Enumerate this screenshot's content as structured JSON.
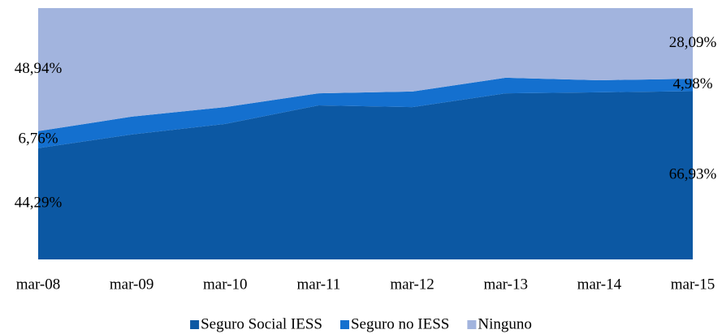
{
  "chart_data": {
    "type": "stacked_area",
    "categories": [
      "mar-08",
      "mar-09",
      "mar-10",
      "mar-11",
      "mar-12",
      "mar-13",
      "mar-14",
      "mar-15"
    ],
    "series": [
      {
        "name": "Seguro Social IESS",
        "color": "#0c58a3",
        "values": [
          44.29,
          49.7,
          53.9,
          61.3,
          60.6,
          66.1,
          66.5,
          66.93
        ],
        "value_labels": [
          "44,29%",
          null,
          null,
          null,
          null,
          null,
          null,
          "66,93%"
        ]
      },
      {
        "name": "Seguro no IESS",
        "color": "#1470cf",
        "values": [
          6.76,
          7.1,
          6.7,
          4.8,
          6.2,
          6.2,
          4.8,
          4.98
        ],
        "value_labels": [
          "6,76%",
          null,
          null,
          null,
          null,
          null,
          null,
          "4,98%"
        ]
      },
      {
        "name": "Ninguno",
        "color": "#a2b4de",
        "values": [
          48.94,
          43.2,
          39.4,
          33.9,
          33.2,
          27.7,
          28.7,
          28.09
        ],
        "value_labels": [
          "48,94%",
          null,
          null,
          null,
          null,
          null,
          null,
          "28,09%"
        ]
      }
    ],
    "ylim": [
      0,
      100
    ],
    "legend": "bottom"
  }
}
